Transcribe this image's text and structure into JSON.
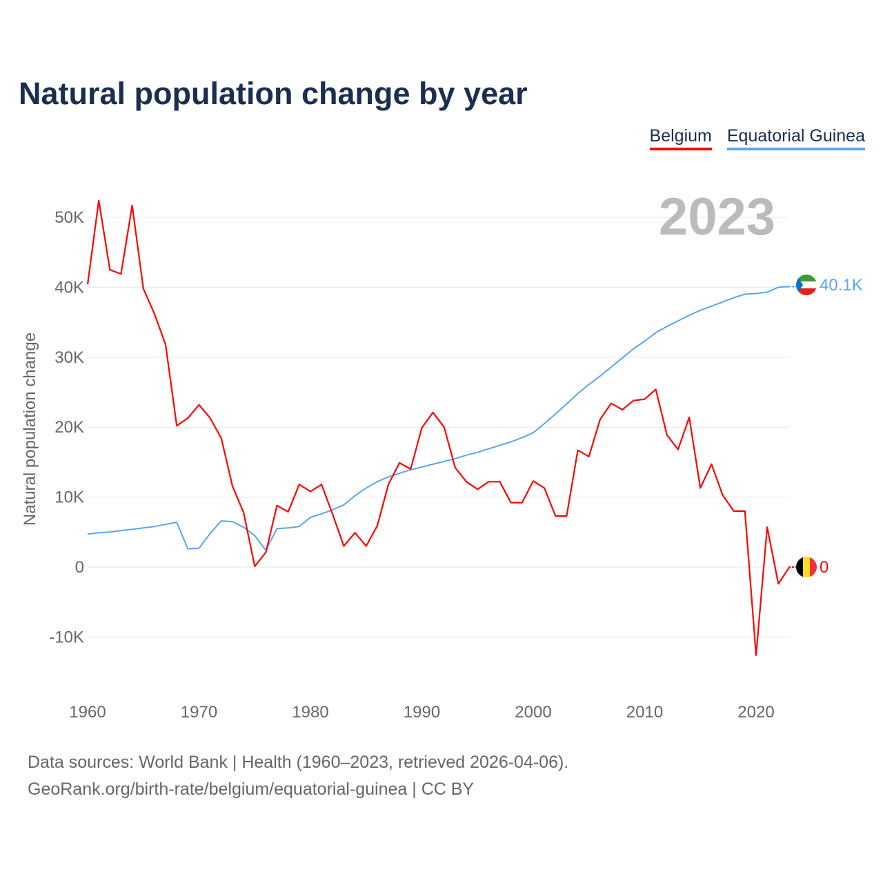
{
  "title": "Natural population change by year",
  "year_label": "2023",
  "footer": {
    "line1": "Data sources: World Bank | Health (1960–2023, retrieved 2026-04-06).",
    "line2": "GeoRank.org/birth-rate/belgium/equatorial-guinea | CC BY"
  },
  "chart_data": {
    "type": "line",
    "title": "Natural population change by year",
    "xlabel": "",
    "ylabel": "Natural population change",
    "xlim": [
      1960,
      2023
    ],
    "ylim": [
      -15000,
      55000
    ],
    "x_ticks": [
      "1960",
      "1970",
      "1980",
      "1990",
      "2000",
      "2010",
      "2020"
    ],
    "y_ticks": [
      {
        "v": 50000,
        "label": "50K"
      },
      {
        "v": 40000,
        "label": "40K"
      },
      {
        "v": 30000,
        "label": "30K"
      },
      {
        "v": 20000,
        "label": "20K"
      },
      {
        "v": 10000,
        "label": "10K"
      },
      {
        "v": 0,
        "label": "0"
      },
      {
        "v": -10000,
        "label": "-10K"
      }
    ],
    "grid": true,
    "legend_position": "top-right",
    "x_start": 1960,
    "series": [
      {
        "name": "Belgium",
        "color": "#ff0000",
        "end_label": "0",
        "flag": "belgium-flag",
        "values": [
          40.4,
          52.4,
          42.5,
          41.9,
          51.7,
          39.8,
          36.2,
          31.8,
          20.2,
          21.3,
          23.2,
          21.3,
          18.4,
          11.6,
          7.8,
          0.1,
          2.1,
          8.8,
          7.9,
          11.8,
          10.8,
          11.8,
          7.5,
          3.0,
          4.9,
          3.0,
          5.9,
          11.8,
          14.9,
          14.0,
          19.9,
          22.1,
          20.0,
          14.2,
          12.2,
          11.1,
          12.2,
          12.2,
          9.2,
          9.2,
          12.3,
          11.3,
          7.3,
          7.3,
          16.7,
          15.8,
          21.1,
          23.4,
          22.5,
          23.8,
          24.0,
          25.4,
          18.9,
          16.8,
          21.4,
          11.3,
          14.7,
          10.3,
          8.0,
          8.0,
          -12.6,
          5.7,
          -2.4,
          0.0
        ]
      },
      {
        "name": "Equatorial Guinea",
        "color": "#5aa5ec",
        "end_label": "40.1K",
        "flag": "equatorial-guinea-flag",
        "values": [
          4.7,
          4.9,
          5.0,
          5.2,
          5.4,
          5.6,
          5.8,
          6.1,
          6.4,
          2.6,
          2.7,
          4.8,
          6.6,
          6.5,
          5.7,
          4.5,
          2.4,
          5.5,
          5.6,
          5.8,
          7.1,
          7.6,
          8.2,
          8.9,
          10.2,
          11.3,
          12.2,
          12.9,
          13.4,
          13.9,
          14.3,
          14.7,
          15.1,
          15.5,
          16.0,
          16.4,
          16.9,
          17.4,
          17.9,
          18.5,
          19.2,
          20.5,
          21.9,
          23.3,
          24.8,
          26.1,
          27.3,
          28.6,
          29.9,
          31.2,
          32.3,
          33.5,
          34.4,
          35.2,
          36.0,
          36.7,
          37.3,
          37.9,
          38.5,
          39.0,
          39.1,
          39.3,
          40.0,
          40.1
        ]
      }
    ],
    "value_unit": "thousands"
  }
}
